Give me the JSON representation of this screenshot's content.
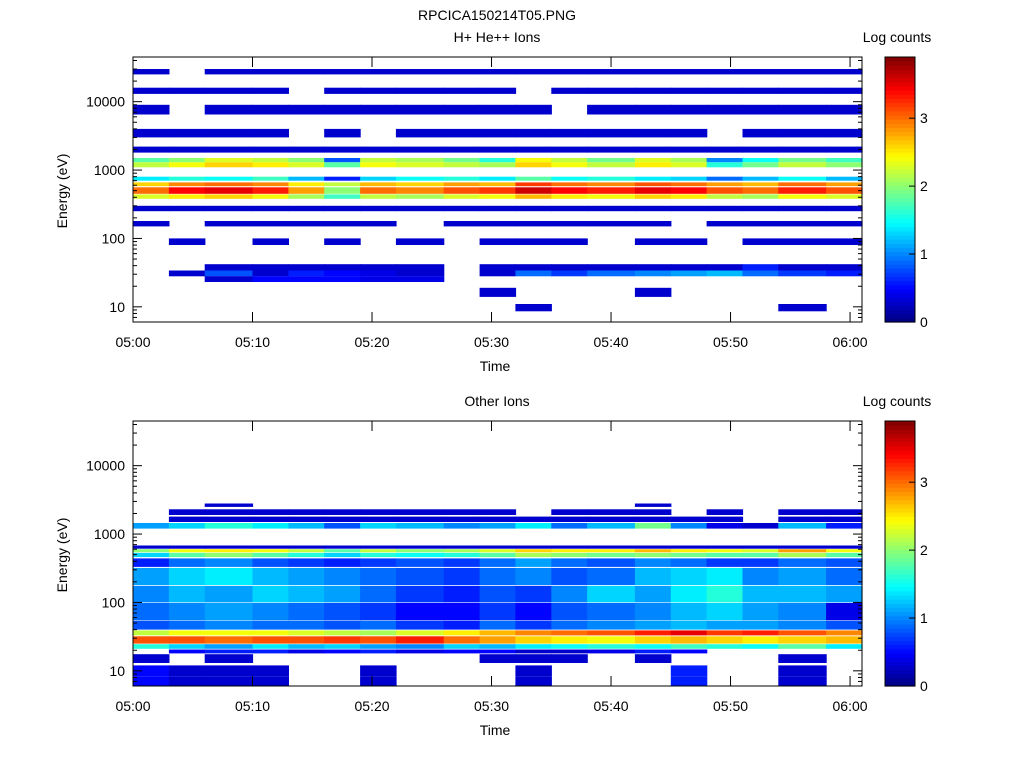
{
  "figure_title": "RPCICA150214T05.PNG",
  "chart_data": [
    {
      "type": "heatmap",
      "title": "H+ He++ Ions",
      "xlabel": "Time",
      "ylabel": "Energy (eV)",
      "y_scale": "log",
      "ylim": [
        6,
        45000
      ],
      "x_range": [
        "05:00",
        "06:01"
      ],
      "x_ticks": [
        "05:00",
        "05:10",
        "05:20",
        "05:30",
        "05:40",
        "05:50",
        "06:00"
      ],
      "y_ticks": [
        "10",
        "100",
        "1000",
        "10000"
      ],
      "colorbar": {
        "label": "Log counts",
        "min": 0,
        "max": 3.9,
        "ticks": [
          "0",
          "1",
          "2",
          "3"
        ]
      },
      "time_bins": [
        "05:00",
        "05:03",
        "05:06",
        "05:10",
        "05:13",
        "05:16",
        "05:19",
        "05:22",
        "05:26",
        "05:29",
        "05:32",
        "05:35",
        "05:38",
        "05:42",
        "05:45",
        "05:48",
        "05:51",
        "05:54",
        "05:58"
      ],
      "bands": [
        {
          "energy": [
            25000,
            30000
          ],
          "values": [
            0.3,
            0,
            0.3,
            0.3,
            0.3,
            0.3,
            0.3,
            0.3,
            0.3,
            0.3,
            0.3,
            0.3,
            0.3,
            0.3,
            0.3,
            0.3,
            0.3,
            0.3,
            0.3
          ]
        },
        {
          "energy": [
            13000,
            16000
          ],
          "values": [
            0.3,
            0.3,
            0.3,
            0.3,
            0,
            0.3,
            0.3,
            0.3,
            0.3,
            0.3,
            0,
            0.3,
            0.3,
            0.3,
            0.3,
            0.3,
            0.3,
            0.3,
            0.3
          ]
        },
        {
          "energy": [
            6500,
            9000
          ],
          "values": [
            0.3,
            0,
            0.3,
            0.3,
            0.3,
            0.3,
            0.3,
            0.3,
            0.3,
            0.3,
            0.3,
            0,
            0.3,
            0.3,
            0.3,
            0.3,
            0.3,
            0.3,
            0.3
          ]
        },
        {
          "energy": [
            3000,
            4000
          ],
          "values": [
            0.3,
            0.3,
            0.3,
            0.3,
            0,
            0.3,
            0,
            0.3,
            0.3,
            0.3,
            0.3,
            0.3,
            0.3,
            0.3,
            0.3,
            0,
            0.3,
            0.3,
            0.3
          ]
        },
        {
          "energy": [
            1800,
            2200
          ],
          "values": [
            0.3,
            0.3,
            0.3,
            0.3,
            0.3,
            0.3,
            0.3,
            0.3,
            0.3,
            0.3,
            0.3,
            0.3,
            0.3,
            0.3,
            0.3,
            0.3,
            0.3,
            0.3,
            0.3
          ]
        },
        {
          "energy": [
            1300,
            1500
          ],
          "values": [
            1.8,
            2.0,
            2.3,
            2.2,
            2.0,
            0.8,
            2.2,
            2.1,
            1.9,
            1.6,
            2.4,
            2.2,
            1.9,
            2.3,
            2.1,
            1.0,
            1.5,
            1.9,
            1.7
          ]
        },
        {
          "energy": [
            1100,
            1300
          ],
          "values": [
            2.2,
            2.4,
            2.6,
            2.5,
            2.3,
            1.8,
            2.4,
            2.3,
            2.2,
            2.1,
            2.6,
            2.4,
            2.2,
            2.5,
            2.3,
            1.6,
            1.9,
            2.2,
            2.0
          ]
        },
        {
          "energy": [
            700,
            800
          ],
          "values": [
            1.4,
            1.6,
            1.5,
            1.7,
            1.2,
            0.6,
            1.3,
            1.5,
            1.6,
            1.4,
            1.8,
            1.5,
            1.6,
            1.4,
            1.3,
            0.9,
            1.2,
            1.5,
            1.2
          ]
        },
        {
          "energy": [
            580,
            660
          ],
          "values": [
            2.6,
            2.9,
            3.0,
            2.9,
            2.5,
            2.2,
            2.7,
            2.6,
            2.8,
            2.7,
            3.2,
            3.0,
            2.9,
            3.1,
            3.0,
            2.8,
            2.7,
            3.0,
            2.8
          ]
        },
        {
          "energy": [
            450,
            560
          ],
          "values": [
            3.0,
            3.4,
            3.5,
            3.3,
            2.8,
            2.0,
            3.0,
            2.9,
            3.1,
            3.2,
            3.6,
            3.4,
            3.3,
            3.5,
            3.4,
            3.1,
            3.0,
            3.3,
            3.1
          ]
        },
        {
          "energy": [
            380,
            440
          ],
          "values": [
            2.3,
            2.5,
            2.6,
            2.4,
            2.1,
            1.7,
            2.2,
            2.1,
            2.3,
            2.4,
            2.7,
            2.5,
            2.4,
            2.6,
            2.5,
            2.2,
            2.1,
            2.4,
            2.3
          ]
        },
        {
          "energy": [
            250,
            300
          ],
          "values": [
            0.3,
            0.3,
            0.3,
            0.3,
            0.3,
            0.3,
            0.3,
            0.3,
            0.3,
            0.3,
            0.3,
            0.3,
            0.3,
            0.3,
            0.3,
            0.3,
            0.3,
            0.3,
            0.3
          ]
        },
        {
          "energy": [
            150,
            180
          ],
          "values": [
            0.3,
            0,
            0.3,
            0.3,
            0.3,
            0.3,
            0.3,
            0,
            0.3,
            0.3,
            0.3,
            0.3,
            0.3,
            0.3,
            0,
            0.3,
            0.3,
            0.3,
            0.3
          ]
        },
        {
          "energy": [
            80,
            100
          ],
          "values": [
            0,
            0.3,
            0,
            0.3,
            0,
            0.3,
            0,
            0.3,
            0,
            0.3,
            0.3,
            0.3,
            0,
            0.3,
            0.3,
            0,
            0.3,
            0.3,
            0.3
          ]
        },
        {
          "energy": [
            34,
            42
          ],
          "values": [
            0,
            0,
            0.3,
            0.3,
            0.3,
            0.3,
            0.3,
            0.3,
            0,
            0.3,
            0.3,
            0.3,
            0.3,
            0.3,
            0.3,
            0.3,
            0.6,
            0.3,
            0.3
          ]
        },
        {
          "energy": [
            28,
            34
          ],
          "values": [
            0,
            0.3,
            0.8,
            0.3,
            0.6,
            0.5,
            0.4,
            0.3,
            0,
            0.3,
            0.9,
            0.7,
            0.9,
            1.0,
            1.1,
            1.2,
            0.9,
            0.7,
            0.6
          ]
        },
        {
          "energy": [
            23,
            28
          ],
          "values": [
            0,
            0,
            0.3,
            0.5,
            0.5,
            0.5,
            0.4,
            0.4,
            0,
            0,
            0,
            0,
            0,
            0,
            0,
            0,
            0,
            0,
            0
          ]
        },
        {
          "energy": [
            14,
            19
          ],
          "values": [
            0,
            0,
            0,
            0,
            0,
            0,
            0,
            0,
            0,
            0.3,
            0,
            0,
            0,
            0.3,
            0,
            0,
            0,
            0,
            0
          ]
        },
        {
          "energy": [
            8.6,
            11
          ],
          "values": [
            0,
            0,
            0,
            0,
            0,
            0,
            0,
            0,
            0,
            0,
            0.3,
            0,
            0,
            0,
            0,
            0,
            0,
            0.3,
            0
          ]
        }
      ]
    },
    {
      "type": "heatmap",
      "title": "Other Ions",
      "xlabel": "Time",
      "ylabel": "Energy (eV)",
      "y_scale": "log",
      "ylim": [
        6,
        45000
      ],
      "x_range": [
        "05:00",
        "06:01"
      ],
      "x_ticks": [
        "05:00",
        "05:10",
        "05:20",
        "05:30",
        "05:40",
        "05:50",
        "06:00"
      ],
      "y_ticks": [
        "10",
        "100",
        "1000",
        "10000"
      ],
      "colorbar": {
        "label": "Log counts",
        "min": 0,
        "max": 3.9,
        "ticks": [
          "0",
          "1",
          "2",
          "3"
        ]
      },
      "time_bins": [
        "05:00",
        "05:03",
        "05:06",
        "05:10",
        "05:13",
        "05:16",
        "05:19",
        "05:22",
        "05:26",
        "05:29",
        "05:32",
        "05:35",
        "05:38",
        "05:42",
        "05:45",
        "05:48",
        "05:51",
        "05:54",
        "05:58"
      ],
      "bands": [
        {
          "energy": [
            2500,
            2800
          ],
          "values": [
            0,
            0,
            0.3,
            0,
            0,
            0,
            0,
            0,
            0,
            0,
            0,
            0,
            0,
            0.3,
            0,
            0,
            0,
            0,
            0
          ]
        },
        {
          "energy": [
            1900,
            2300
          ],
          "values": [
            0,
            0.3,
            0.3,
            0.3,
            0.3,
            0.3,
            0.3,
            0.3,
            0.3,
            0.3,
            0,
            0.3,
            0.3,
            0.3,
            0,
            0.3,
            0,
            0.3,
            0.3
          ]
        },
        {
          "energy": [
            1500,
            1800
          ],
          "values": [
            0,
            0.3,
            0.3,
            0.3,
            0.3,
            0.3,
            0.3,
            0.3,
            0.3,
            0.3,
            0.3,
            0.3,
            0.3,
            0.3,
            0.3,
            0.3,
            0,
            0.3,
            0.3
          ]
        },
        {
          "energy": [
            1200,
            1450
          ],
          "values": [
            1.1,
            1.3,
            1.6,
            1.4,
            1.2,
            0.8,
            1.3,
            1.2,
            1.0,
            1.1,
            1.4,
            0.9,
            1.2,
            1.9,
            1.0,
            0.4,
            0.3,
            1.2,
            0.6
          ]
        },
        {
          "energy": [
            610,
            680
          ],
          "values": [
            0.3,
            0.3,
            0.3,
            0.3,
            0.3,
            0.3,
            0.3,
            0.3,
            0.3,
            0.3,
            0.3,
            0.3,
            0.3,
            0.3,
            0.3,
            0.3,
            0.3,
            0.3,
            0.3
          ]
        },
        {
          "energy": [
            540,
            600
          ],
          "values": [
            2.0,
            2.4,
            2.5,
            2.4,
            2.2,
            1.8,
            2.2,
            2.0,
            2.1,
            2.3,
            2.6,
            2.5,
            2.5,
            2.7,
            2.5,
            2.4,
            2.3,
            2.8,
            2.4
          ]
        },
        {
          "energy": [
            460,
            530
          ],
          "values": [
            1.3,
            1.8,
            2.0,
            1.8,
            1.6,
            1.3,
            1.6,
            1.5,
            1.6,
            1.8,
            2.1,
            2.0,
            1.9,
            2.0,
            1.9,
            1.8,
            1.8,
            2.1,
            1.8
          ]
        },
        {
          "energy": [
            330,
            440
          ],
          "values": [
            0.6,
            0.9,
            1.0,
            0.8,
            0.7,
            0.6,
            0.7,
            0.8,
            0.7,
            0.9,
            1.1,
            0.9,
            0.8,
            1.0,
            0.9,
            0.7,
            0.7,
            0.9,
            0.8
          ]
        },
        {
          "energy": [
            180,
            320
          ],
          "values": [
            1.1,
            1.3,
            1.4,
            1.2,
            1.1,
            1.0,
            0.9,
            0.8,
            0.7,
            0.9,
            1.0,
            0.8,
            0.9,
            1.2,
            1.3,
            1.4,
            1.0,
            1.1,
            0.9
          ]
        },
        {
          "energy": [
            100,
            175
          ],
          "values": [
            1.0,
            1.2,
            1.1,
            1.3,
            1.2,
            1.1,
            0.9,
            0.7,
            0.6,
            0.8,
            0.7,
            1.0,
            1.3,
            1.1,
            1.4,
            1.6,
            1.2,
            1.2,
            1.1
          ]
        },
        {
          "energy": [
            55,
            98
          ],
          "values": [
            0.9,
            1.0,
            1.1,
            1.0,
            0.9,
            0.8,
            0.7,
            0.5,
            0.5,
            0.7,
            0.5,
            0.8,
            0.9,
            1.0,
            1.2,
            1.3,
            1.1,
            1.0,
            0.4
          ]
        },
        {
          "energy": [
            40,
            54
          ],
          "values": [
            0.8,
            0.9,
            1.0,
            0.9,
            0.9,
            0.8,
            0.9,
            0.7,
            0.6,
            0.9,
            0.7,
            0.9,
            1.0,
            1.1,
            1.2,
            1.1,
            1.1,
            1.0,
            0.8
          ]
        },
        {
          "energy": [
            33,
            39
          ],
          "values": [
            2.2,
            2.4,
            2.4,
            2.4,
            2.3,
            2.2,
            2.1,
            2.3,
            2.5,
            2.7,
            2.9,
            3.0,
            3.1,
            3.3,
            3.5,
            3.2,
            3.3,
            3.1,
            2.9
          ]
        },
        {
          "energy": [
            25,
            32
          ],
          "values": [
            3.1,
            3.1,
            3.0,
            3.1,
            3.1,
            3.2,
            3.1,
            3.3,
            3.0,
            2.8,
            2.6,
            2.5,
            2.4,
            2.6,
            2.7,
            2.6,
            2.5,
            2.6,
            2.7
          ]
        },
        {
          "energy": [
            21,
            24.5
          ],
          "values": [
            1.6,
            1.3,
            1.1,
            1.4,
            1.2,
            1.3,
            1.1,
            1.0,
            1.3,
            1.2,
            1.4,
            1.5,
            1.6,
            1.5,
            1.7,
            1.6,
            1.5,
            1.8,
            1.4
          ]
        },
        {
          "energy": [
            18,
            20.5
          ],
          "values": [
            0,
            0.5,
            0.6,
            0.6,
            0.4,
            0.5,
            0.6,
            0.4,
            0.5,
            0.5,
            0.3,
            0.3,
            0.4,
            0.6,
            0.5,
            0,
            0,
            0,
            0
          ]
        },
        {
          "energy": [
            13,
            17.5
          ],
          "values": [
            0.3,
            0,
            0.3,
            0,
            0,
            0,
            0,
            0,
            0,
            0.3,
            0.3,
            0.3,
            0,
            0.3,
            0,
            0,
            0,
            0.3,
            0
          ]
        },
        {
          "energy": [
            8.2,
            12
          ],
          "values": [
            0.5,
            0.3,
            0.3,
            0.3,
            0,
            0,
            0.3,
            0,
            0,
            0,
            0.3,
            0,
            0,
            0,
            0.6,
            0,
            0,
            0.3,
            0
          ]
        },
        {
          "energy": [
            6,
            8.2
          ],
          "values": [
            0.5,
            0.3,
            0.3,
            0.3,
            0,
            0,
            0.3,
            0,
            0,
            0,
            0.3,
            0,
            0,
            0,
            0.6,
            0,
            0,
            0.3,
            0
          ]
        }
      ]
    }
  ]
}
